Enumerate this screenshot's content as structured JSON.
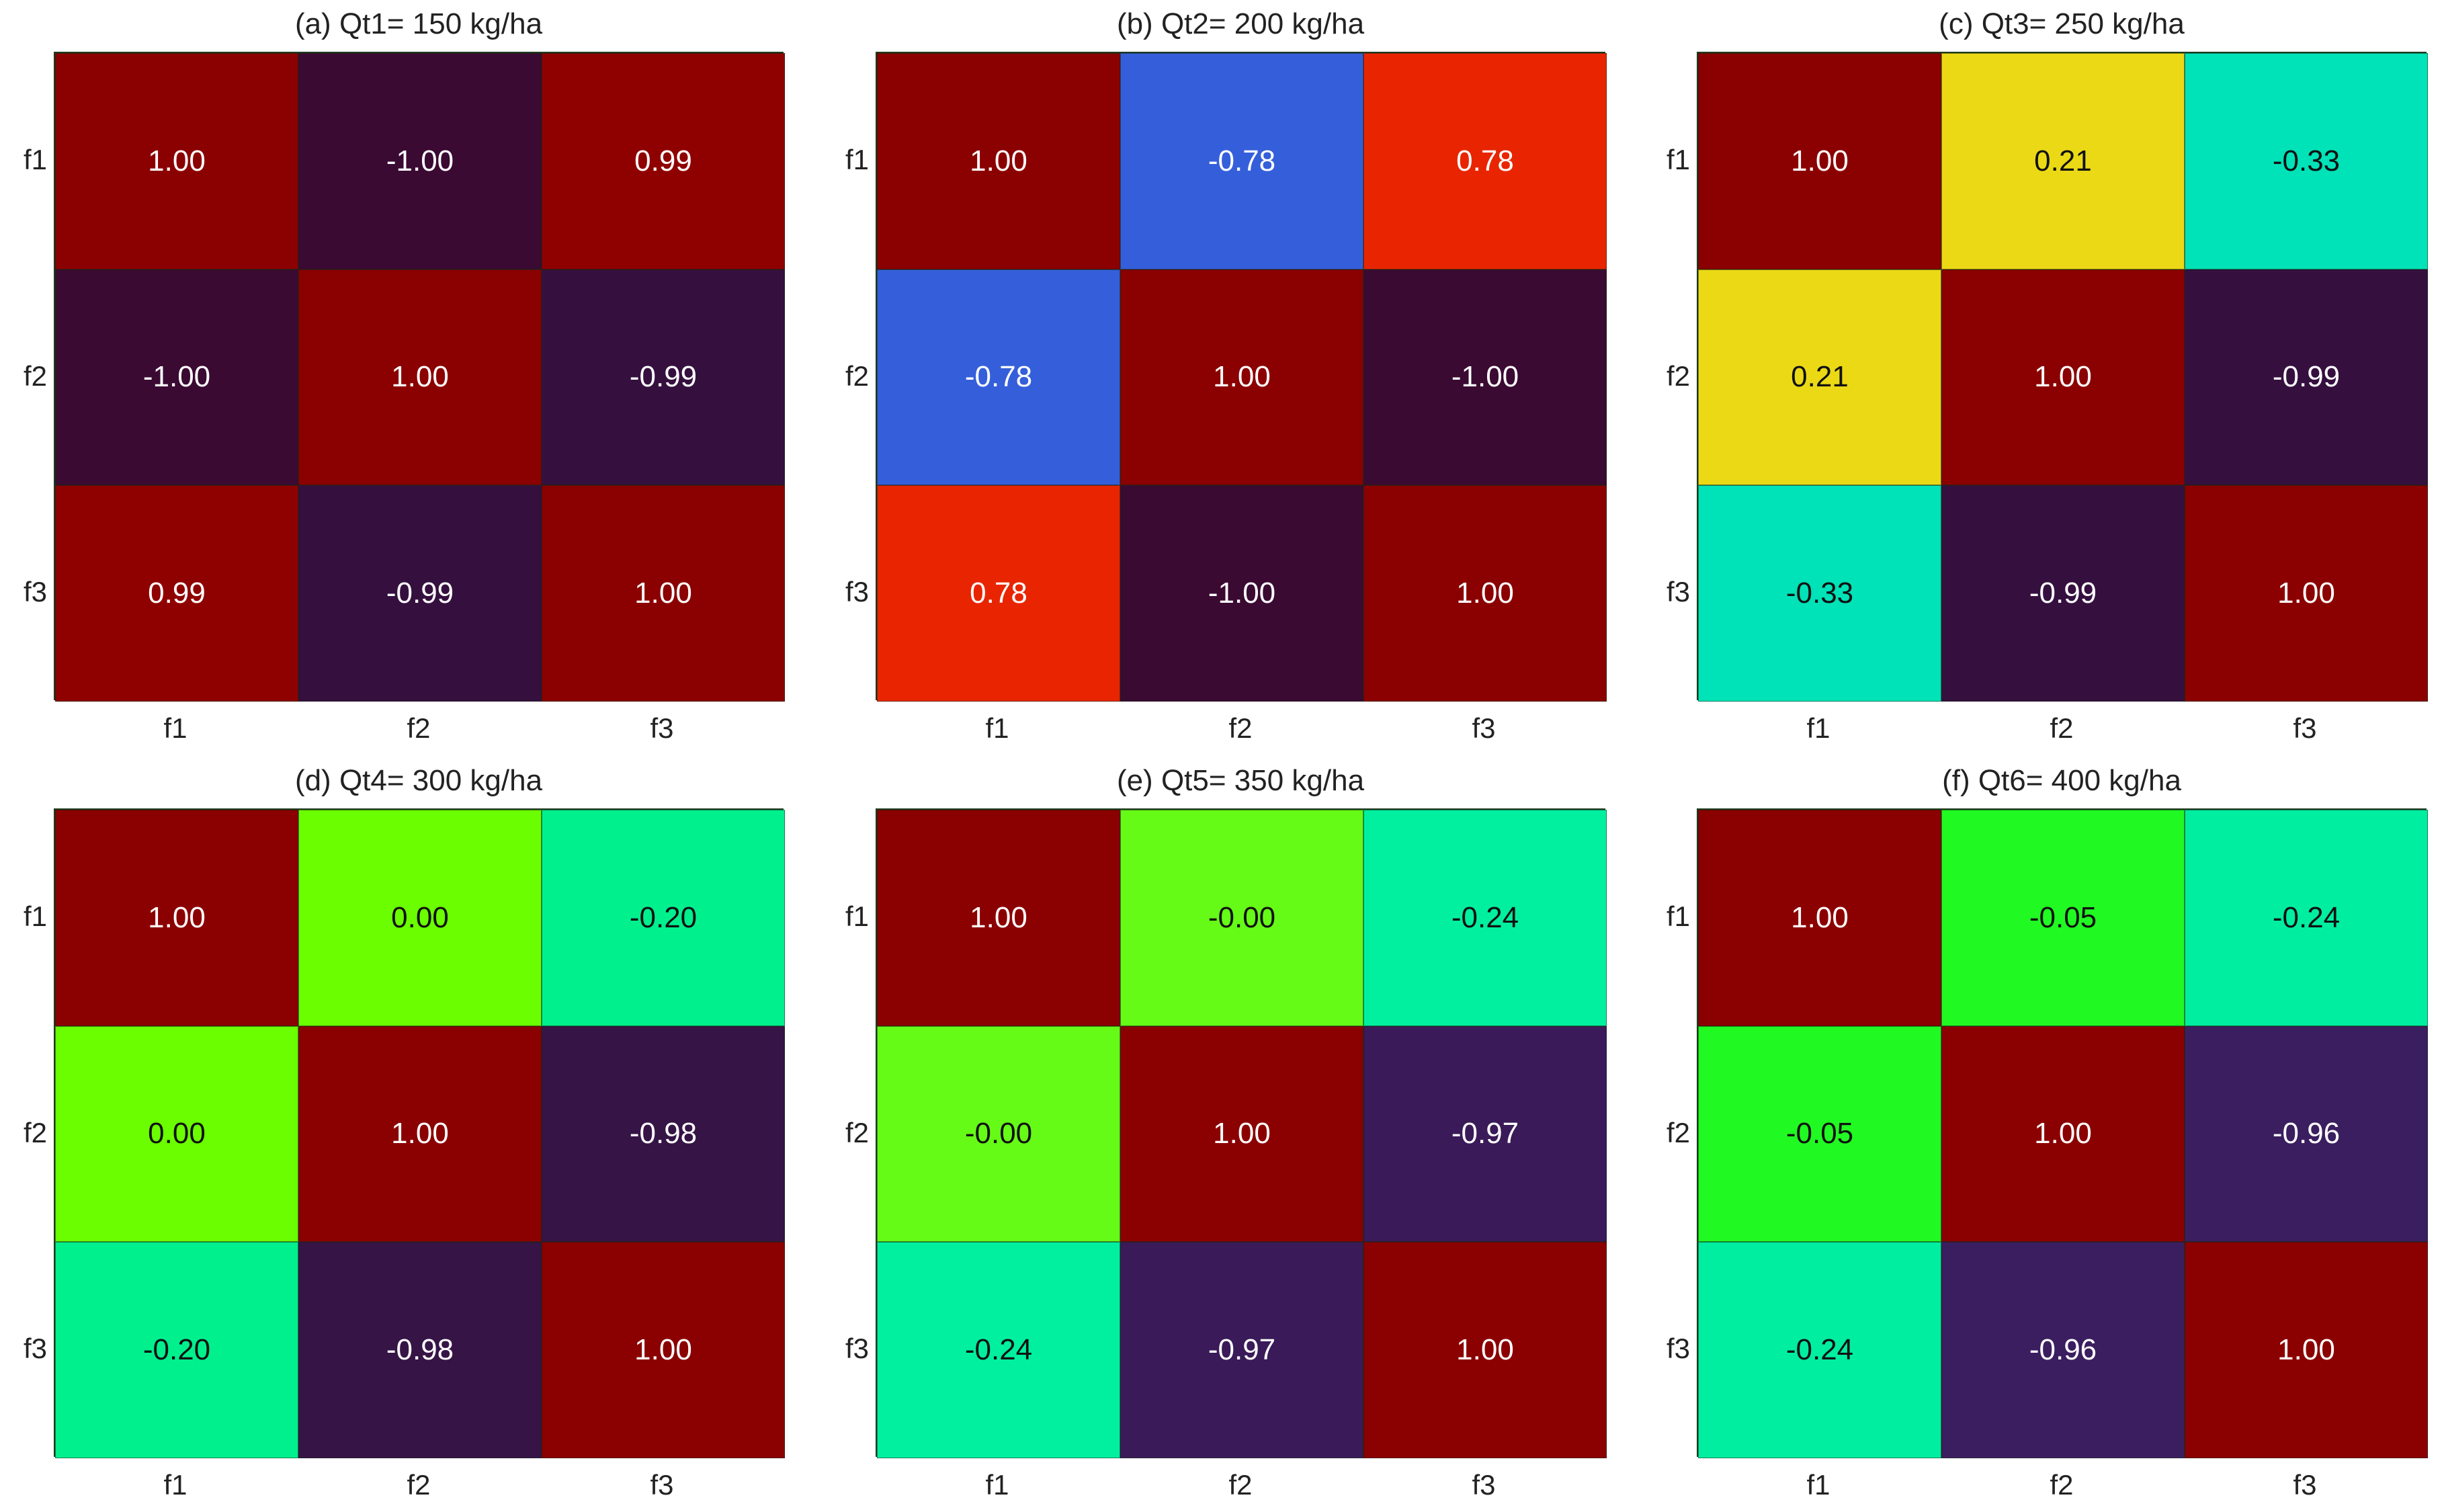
{
  "chart_data": [
    {
      "type": "heatmap",
      "title": "(a) Qt1= 150 kg/ha",
      "x_labels": [
        "f1",
        "f2",
        "f3"
      ],
      "y_labels": [
        "f1",
        "f2",
        "f3"
      ],
      "values": [
        [
          1.0,
          -1.0,
          0.99
        ],
        [
          -1.0,
          1.0,
          -0.99
        ],
        [
          0.99,
          -0.99,
          1.0
        ]
      ],
      "value_labels": [
        [
          "1.00",
          "-1.00",
          "0.99"
        ],
        [
          "-1.00",
          "1.00",
          "-0.99"
        ],
        [
          "0.99",
          "-0.99",
          "1.00"
        ]
      ],
      "colors": [
        [
          "#8b0000",
          "#3a0a33",
          "#8f0000"
        ],
        [
          "#3a0a33",
          "#8b0000",
          "#35103f"
        ],
        [
          "#8f0000",
          "#35103f",
          "#8b0000"
        ]
      ],
      "text_colors": [
        [
          "#ffffff",
          "#ffffff",
          "#ffffff"
        ],
        [
          "#ffffff",
          "#ffffff",
          "#ffffff"
        ],
        [
          "#ffffff",
          "#ffffff",
          "#ffffff"
        ]
      ]
    },
    {
      "type": "heatmap",
      "title": "(b) Qt2= 200 kg/ha",
      "x_labels": [
        "f1",
        "f2",
        "f3"
      ],
      "y_labels": [
        "f1",
        "f2",
        "f3"
      ],
      "values": [
        [
          1.0,
          -0.78,
          0.78
        ],
        [
          -0.78,
          1.0,
          -1.0
        ],
        [
          0.78,
          -1.0,
          1.0
        ]
      ],
      "value_labels": [
        [
          "1.00",
          "-0.78",
          "0.78"
        ],
        [
          "-0.78",
          "1.00",
          "-1.00"
        ],
        [
          "0.78",
          "-1.00",
          "1.00"
        ]
      ],
      "colors": [
        [
          "#8b0000",
          "#355fda",
          "#e82500"
        ],
        [
          "#355fda",
          "#8b0000",
          "#3a0a33"
        ],
        [
          "#e82500",
          "#3a0a33",
          "#8b0000"
        ]
      ],
      "text_colors": [
        [
          "#ffffff",
          "#ffffff",
          "#ffffff"
        ],
        [
          "#ffffff",
          "#ffffff",
          "#ffffff"
        ],
        [
          "#ffffff",
          "#ffffff",
          "#ffffff"
        ]
      ]
    },
    {
      "type": "heatmap",
      "title": "(c) Qt3= 250 kg/ha",
      "x_labels": [
        "f1",
        "f2",
        "f3"
      ],
      "y_labels": [
        "f1",
        "f2",
        "f3"
      ],
      "values": [
        [
          1.0,
          0.21,
          -0.33
        ],
        [
          0.21,
          1.0,
          -0.99
        ],
        [
          -0.33,
          -0.99,
          1.0
        ]
      ],
      "value_labels": [
        [
          "1.00",
          "0.21",
          "-0.33"
        ],
        [
          "0.21",
          "1.00",
          "-0.99"
        ],
        [
          "-0.33",
          "-0.99",
          "1.00"
        ]
      ],
      "colors": [
        [
          "#8b0000",
          "#ebd916",
          "#00e2b7"
        ],
        [
          "#ebd916",
          "#8b0000",
          "#35103f"
        ],
        [
          "#00e2b7",
          "#35103f",
          "#8b0000"
        ]
      ],
      "text_colors": [
        [
          "#ffffff",
          "#111111",
          "#111111"
        ],
        [
          "#111111",
          "#ffffff",
          "#ffffff"
        ],
        [
          "#111111",
          "#ffffff",
          "#ffffff"
        ]
      ]
    },
    {
      "type": "heatmap",
      "title": "(d) Qt4= 300 kg/ha",
      "x_labels": [
        "f1",
        "f2",
        "f3"
      ],
      "y_labels": [
        "f1",
        "f2",
        "f3"
      ],
      "values": [
        [
          1.0,
          0.0,
          -0.2
        ],
        [
          0.0,
          1.0,
          -0.98
        ],
        [
          -0.2,
          -0.98,
          1.0
        ]
      ],
      "value_labels": [
        [
          "1.00",
          "0.00",
          "-0.20"
        ],
        [
          "0.00",
          "1.00",
          "-0.98"
        ],
        [
          "-0.20",
          "-0.98",
          "1.00"
        ]
      ],
      "colors": [
        [
          "#8b0000",
          "#6bfe00",
          "#00f08e"
        ],
        [
          "#6bfe00",
          "#8b0000",
          "#361446"
        ],
        [
          "#00f08e",
          "#361446",
          "#8b0000"
        ]
      ],
      "text_colors": [
        [
          "#ffffff",
          "#111111",
          "#111111"
        ],
        [
          "#111111",
          "#ffffff",
          "#ffffff"
        ],
        [
          "#111111",
          "#ffffff",
          "#ffffff"
        ]
      ]
    },
    {
      "type": "heatmap",
      "title": "(e) Qt5= 350 kg/ha",
      "x_labels": [
        "f1",
        "f2",
        "f3"
      ],
      "y_labels": [
        "f1",
        "f2",
        "f3"
      ],
      "values": [
        [
          1.0,
          -0.0,
          -0.24
        ],
        [
          -0.0,
          1.0,
          -0.97
        ],
        [
          -0.24,
          -0.97,
          1.0
        ]
      ],
      "value_labels": [
        [
          "1.00",
          "-0.00",
          "-0.24"
        ],
        [
          "-0.00",
          "1.00",
          "-0.97"
        ],
        [
          "-0.24",
          "-0.97",
          "1.00"
        ]
      ],
      "colors": [
        [
          "#8b0000",
          "#66fb17",
          "#00f0a0"
        ],
        [
          "#66fb17",
          "#8b0000",
          "#3a1a58"
        ],
        [
          "#00f0a0",
          "#3a1a58",
          "#8b0000"
        ]
      ],
      "text_colors": [
        [
          "#ffffff",
          "#111111",
          "#111111"
        ],
        [
          "#111111",
          "#ffffff",
          "#ffffff"
        ],
        [
          "#111111",
          "#ffffff",
          "#ffffff"
        ]
      ]
    },
    {
      "type": "heatmap",
      "title": "(f) Qt6= 400 kg/ha",
      "x_labels": [
        "f1",
        "f2",
        "f3"
      ],
      "y_labels": [
        "f1",
        "f2",
        "f3"
      ],
      "values": [
        [
          1.0,
          -0.05,
          -0.24
        ],
        [
          -0.05,
          1.0,
          -0.96
        ],
        [
          -0.24,
          -0.96,
          1.0
        ]
      ],
      "value_labels": [
        [
          "1.00",
          "-0.05",
          "-0.24"
        ],
        [
          "-0.05",
          "1.00",
          "-0.96"
        ],
        [
          "-0.24",
          "-0.96",
          "1.00"
        ]
      ],
      "colors": [
        [
          "#8b0000",
          "#20fa22",
          "#00eea0"
        ],
        [
          "#20fa22",
          "#8b0000",
          "#3b1e60"
        ],
        [
          "#00eea0",
          "#3b1e60",
          "#8b0000"
        ]
      ],
      "text_colors": [
        [
          "#ffffff",
          "#111111",
          "#111111"
        ],
        [
          "#111111",
          "#ffffff",
          "#ffffff"
        ],
        [
          "#111111",
          "#ffffff",
          "#ffffff"
        ]
      ]
    }
  ]
}
